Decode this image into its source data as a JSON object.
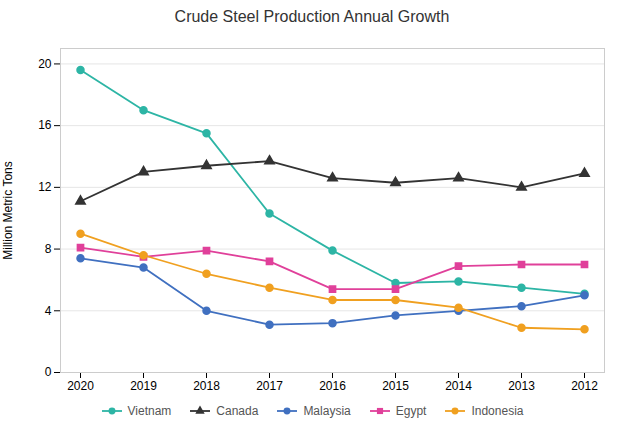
{
  "chart_data": {
    "type": "line",
    "title": "Crude Steel Production Annual Growth",
    "ylabel": "Million Metric Tons",
    "categories": [
      "2020",
      "2019",
      "2018",
      "2017",
      "2016",
      "2015",
      "2014",
      "2013",
      "2012"
    ],
    "series": [
      {
        "name": "Vietnam",
        "color": "#2db5a5",
        "marker": "circle",
        "values": [
          19.6,
          17.0,
          15.5,
          10.3,
          7.9,
          5.8,
          5.9,
          5.5,
          5.1
        ]
      },
      {
        "name": "Canada",
        "color": "#333333",
        "marker": "triangle",
        "values": [
          11.1,
          13.0,
          13.4,
          13.7,
          12.6,
          12.3,
          12.6,
          12.0,
          12.9
        ]
      },
      {
        "name": "Malaysia",
        "color": "#4070c0",
        "marker": "circle",
        "values": [
          7.4,
          6.8,
          4.0,
          3.1,
          3.2,
          3.7,
          4.0,
          4.3,
          5.0
        ]
      },
      {
        "name": "Egypt",
        "color": "#e0409a",
        "marker": "square",
        "values": [
          8.1,
          7.5,
          7.9,
          7.2,
          5.4,
          5.4,
          6.9,
          7.0,
          7.0
        ]
      },
      {
        "name": "Indonesia",
        "color": "#f0a020",
        "marker": "circle",
        "values": [
          9.0,
          7.6,
          6.4,
          5.5,
          4.7,
          4.7,
          4.2,
          2.9,
          2.8
        ]
      }
    ],
    "ylim": [
      0,
      21
    ],
    "yticks": [
      0,
      4,
      8,
      12,
      16,
      20
    ],
    "grid": true,
    "legend": "bottom"
  }
}
